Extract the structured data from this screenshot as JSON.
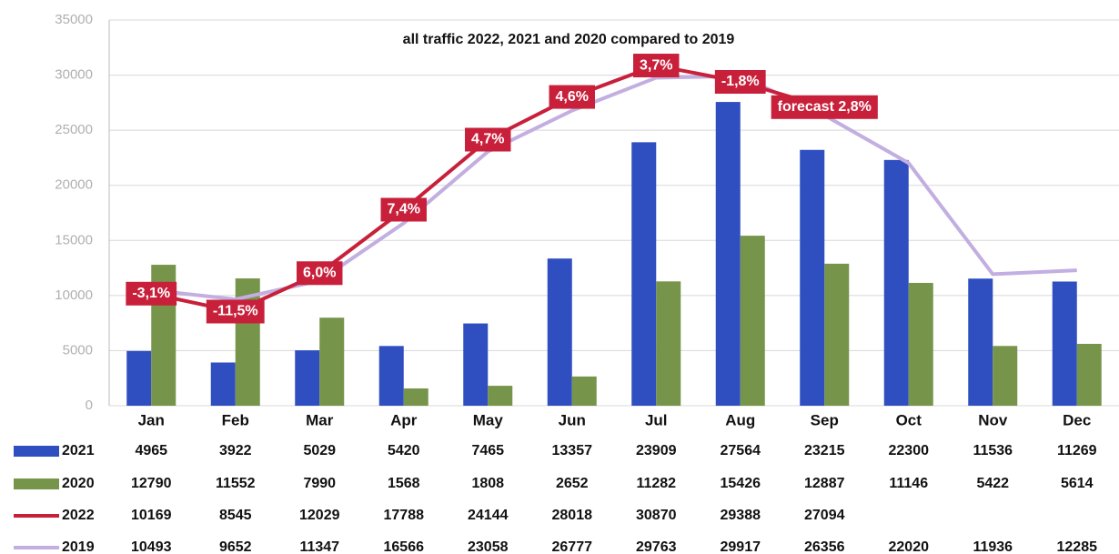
{
  "chart_data": {
    "type": "bar",
    "title": "all traffic 2022, 2021 and 2020 compared to 2019",
    "categories": [
      "Jan",
      "Feb",
      "Mar",
      "Apr",
      "May",
      "Jun",
      "Jul",
      "Aug",
      "Sep",
      "Oct",
      "Nov",
      "Dec"
    ],
    "ylim": [
      0,
      35000
    ],
    "yticks": [
      0,
      5000,
      10000,
      15000,
      20000,
      25000,
      30000,
      35000
    ],
    "grid": true,
    "series": [
      {
        "name": "2021",
        "type": "bar",
        "color": "#2f4fc0",
        "values": [
          4965,
          3922,
          5029,
          5420,
          7465,
          13357,
          23909,
          27564,
          23215,
          22300,
          11536,
          11269
        ]
      },
      {
        "name": "2020",
        "type": "bar",
        "color": "#76944a",
        "values": [
          12790,
          11552,
          7990,
          1568,
          1808,
          2652,
          11282,
          15426,
          12887,
          11146,
          5422,
          5614
        ]
      },
      {
        "name": "2022",
        "type": "line",
        "color": "#c8203a",
        "values": [
          10169,
          8545,
          12029,
          17788,
          24144,
          28018,
          30870,
          29388,
          27094,
          null,
          null,
          null
        ],
        "point_labels": [
          "-3,1%",
          "-11,5%",
          "6,0%",
          "7,4%",
          "4,7%",
          "4,6%",
          "3,7%",
          "-1,8%",
          "forecast 2,8%",
          null,
          null,
          null
        ]
      },
      {
        "name": "2019",
        "type": "line",
        "color": "#c2aee0",
        "values": [
          10493,
          9652,
          11347,
          16566,
          23058,
          26777,
          29763,
          29917,
          26356,
          22020,
          11936,
          12285
        ]
      }
    ]
  }
}
